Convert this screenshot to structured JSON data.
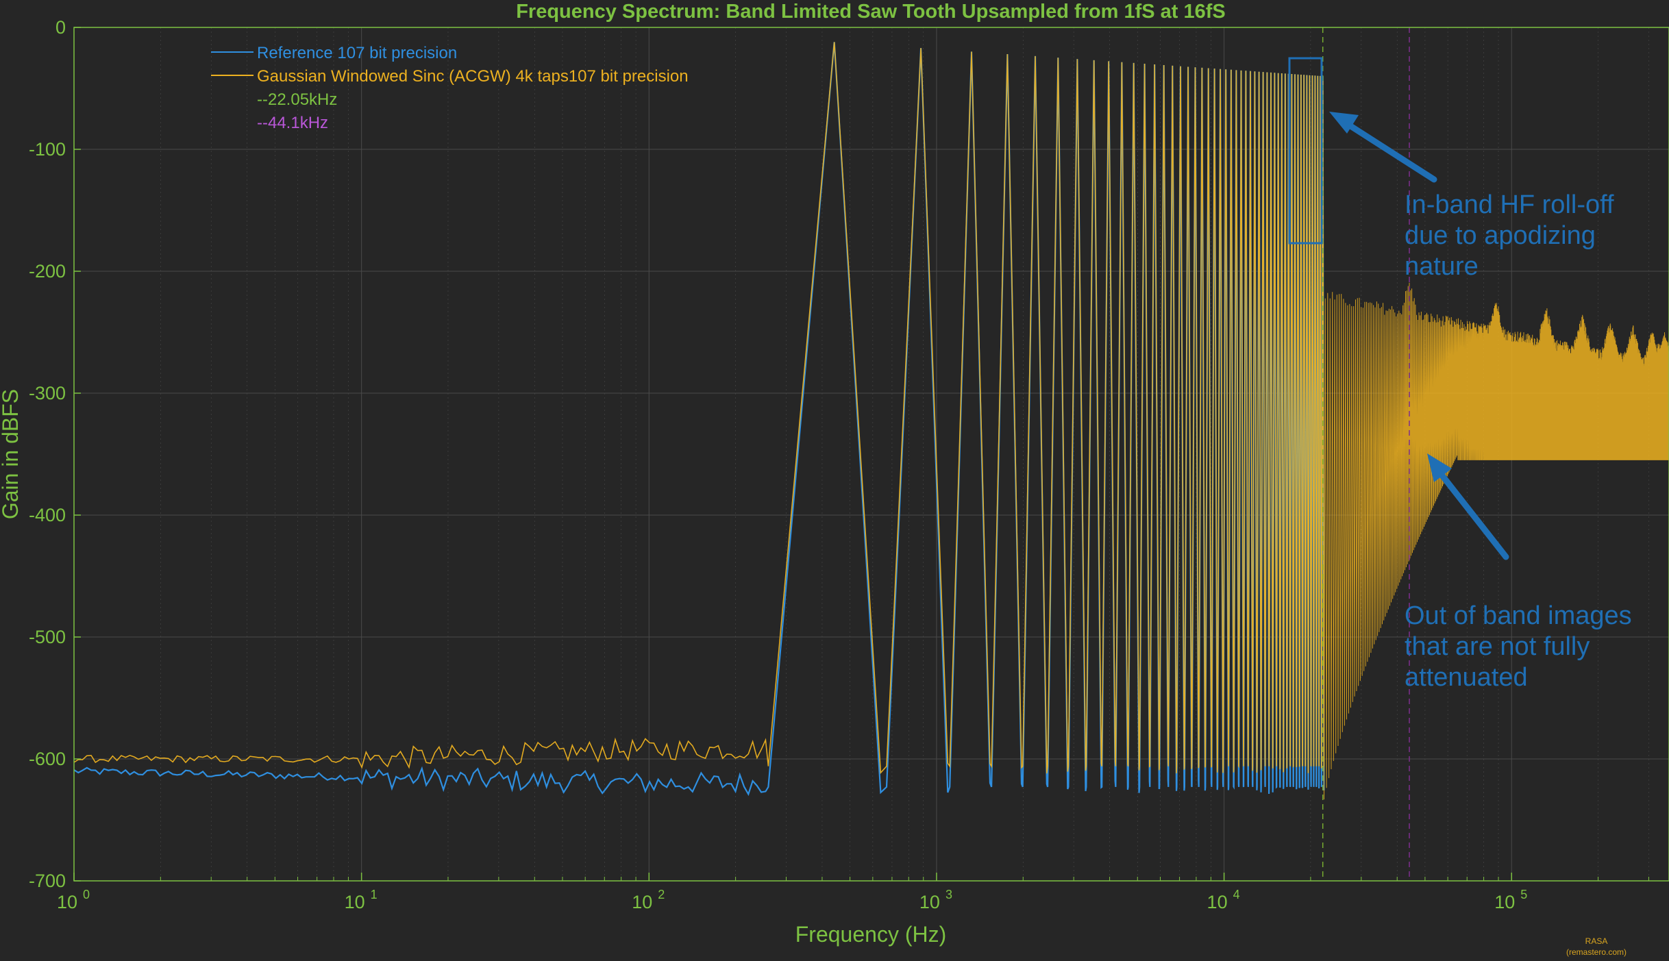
{
  "colors": {
    "background": "#262626",
    "axis": "#7dc242",
    "grid": "#4a4a4a",
    "reference": "#2f8fe0",
    "gaussian": "#edb120",
    "line_22k": "#77ac30",
    "line_44k": "#7e2f8e",
    "legend_44k_text": "#b957d8",
    "annotation": "#1f6fb5",
    "credit": "#d9a520"
  },
  "chart_data": {
    "type": "line",
    "title": "Frequency Spectrum: Band Limited Saw Tooth Upsampled from 1fS at 16fS",
    "xlabel": "Frequency (Hz)",
    "ylabel": "Gain in dBFS",
    "xscale": "log",
    "xlim": [
      1,
      352800
    ],
    "ylim": [
      -700,
      0
    ],
    "grid": true,
    "legend_position": "top-left",
    "x_ticks": [
      {
        "base": "10",
        "exp": "0"
      },
      {
        "base": "10",
        "exp": "1"
      },
      {
        "base": "10",
        "exp": "2"
      },
      {
        "base": "10",
        "exp": "3"
      },
      {
        "base": "10",
        "exp": "4"
      },
      {
        "base": "10",
        "exp": "5"
      }
    ],
    "y_ticks": [
      "0",
      "-100",
      "-200",
      "-300",
      "-400",
      "-500",
      "-600",
      "-700"
    ],
    "fundamental_hz": 441,
    "harmonic_peak_start_db": -12,
    "harmonic_peak_end_db": -40,
    "floor_reference_db": -615,
    "vlines_hz": [
      22050,
      44100
    ],
    "series": [
      {
        "name": "Reference 107 bit precision"
      },
      {
        "name": "Gaussian Windowed Sinc (ACGW) 4k  taps107 bit precision"
      },
      {
        "name": "--22.05kHz"
      },
      {
        "name": "--44.1kHz"
      }
    ]
  },
  "annotations": {
    "roll_off": [
      "In-band HF roll-off",
      "due to apodizing",
      "nature"
    ],
    "images": [
      "Out of band images",
      "that are not fully",
      "attenuated"
    ]
  },
  "credit": [
    "RASA",
    "(remastero.com)"
  ]
}
